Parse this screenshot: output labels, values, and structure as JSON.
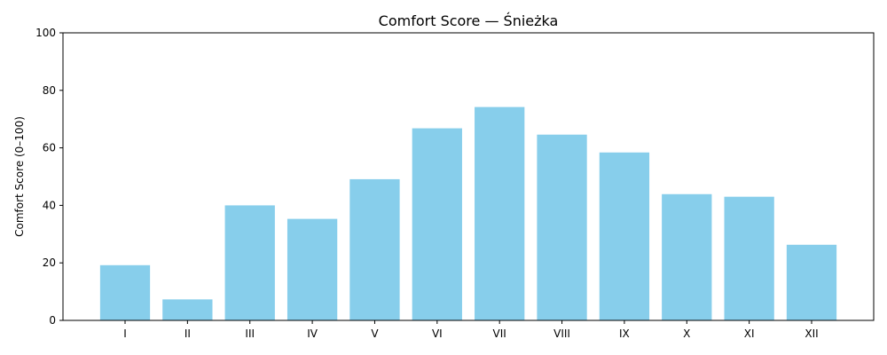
{
  "chart_data": {
    "type": "bar",
    "title": "Comfort Score — Śnieżka",
    "xlabel": "",
    "ylabel": "Comfort Score (0–100)",
    "categories": [
      "I",
      "II",
      "III",
      "IV",
      "V",
      "VI",
      "VII",
      "VIII",
      "IX",
      "X",
      "XI",
      "XII"
    ],
    "values": [
      19.2,
      7.3,
      40.0,
      35.3,
      49.1,
      66.8,
      74.2,
      64.6,
      58.4,
      43.9,
      43.0,
      26.3
    ],
    "ylim": [
      0,
      100
    ],
    "yticks": [
      "0",
      "20",
      "40",
      "60",
      "80",
      "100"
    ],
    "grid": false,
    "bar_color": "#87ceeb"
  }
}
